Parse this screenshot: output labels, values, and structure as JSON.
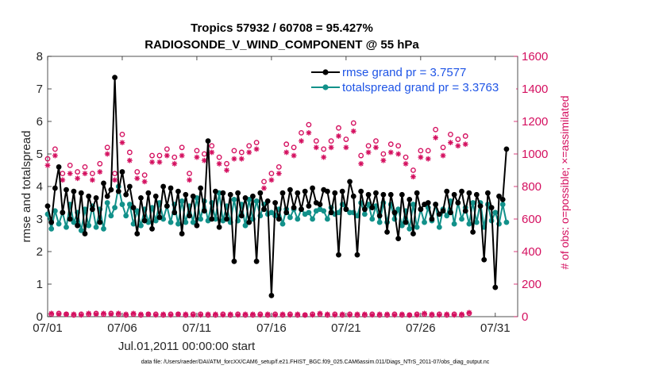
{
  "chart_data": {
    "type": "line",
    "title_line1": "Tropics 57932 / 60708 = 95.427%",
    "title_line2": "RADIOSONDE_V_WIND_COMPONENT @ 55 hPa",
    "xlabel": "Jul.01,2011 00:00:00 start",
    "ylabel_left": "rmse and totalspread",
    "ylabel_right": "# of obs: o=possible; ×=assimilated",
    "footnote": "data file: /Users/raeder/DAI/ATM_forcXX/CAM6_setup/f.e21.FHIST_BGC.f09_025.CAM6assim.011/Diags_NTrS_2011-07/obs_diag_output.nc",
    "ylim_left": [
      0,
      8
    ],
    "yticks_left": [
      "0",
      "1",
      "2",
      "3",
      "4",
      "5",
      "6",
      "7",
      "8"
    ],
    "ylim_right": [
      0,
      1600
    ],
    "yticks_right": [
      "0",
      "200",
      "400",
      "600",
      "800",
      "1000",
      "1200",
      "1400",
      "1600"
    ],
    "xlim": [
      0,
      31.5
    ],
    "xticks": [
      {
        "label": "07/01",
        "day": 0
      },
      {
        "label": "07/06",
        "day": 5
      },
      {
        "label": "07/11",
        "day": 10
      },
      {
        "label": "07/16",
        "day": 15
      },
      {
        "label": "07/21",
        "day": 20
      },
      {
        "label": "07/26",
        "day": 25
      },
      {
        "label": "07/31",
        "day": 30
      }
    ],
    "x": [
      0,
      0.25,
      0.5,
      0.75,
      1,
      1.25,
      1.5,
      1.75,
      2,
      2.25,
      2.5,
      2.75,
      3,
      3.25,
      3.5,
      3.75,
      4,
      4.25,
      4.5,
      4.75,
      5,
      5.25,
      5.5,
      5.75,
      6,
      6.25,
      6.5,
      6.75,
      7,
      7.25,
      7.5,
      7.75,
      8,
      8.25,
      8.5,
      8.75,
      9,
      9.25,
      9.5,
      9.75,
      10,
      10.25,
      10.5,
      10.75,
      11,
      11.25,
      11.5,
      11.75,
      12,
      12.25,
      12.5,
      12.75,
      13,
      13.25,
      13.5,
      13.75,
      14,
      14.25,
      14.5,
      14.75,
      15,
      15.25,
      15.5,
      15.75,
      16,
      16.25,
      16.5,
      16.75,
      17,
      17.25,
      17.5,
      17.75,
      18,
      18.25,
      18.5,
      18.75,
      19,
      19.25,
      19.5,
      19.75,
      20,
      20.25,
      20.5,
      20.75,
      21,
      21.25,
      21.5,
      21.75,
      22,
      22.25,
      22.5,
      22.75,
      23,
      23.25,
      23.5,
      23.75,
      24,
      24.25,
      24.5,
      24.75,
      25,
      25.25,
      25.5,
      25.75,
      26,
      26.25,
      26.5,
      26.75,
      27,
      27.25,
      27.5,
      27.75,
      28,
      28.25,
      28.5,
      28.75,
      29,
      29.25,
      29.5,
      29.75,
      30,
      30.25,
      30.5,
      30.75
    ],
    "series": [
      {
        "name": "rmse grand pr = 3.7577",
        "axis": "left",
        "color": "#000000",
        "values": [
          3.4,
          2.9,
          3.95,
          4.6,
          3.2,
          3.9,
          3.0,
          3.85,
          2.8,
          3.8,
          2.55,
          3.7,
          3.3,
          3.65,
          2.9,
          4.1,
          3.7,
          3.9,
          7.35,
          3.85,
          4.45,
          3.75,
          4.0,
          3.35,
          2.55,
          3.65,
          2.95,
          3.8,
          2.7,
          3.7,
          3.05,
          4.0,
          3.4,
          3.95,
          3.2,
          3.85,
          2.55,
          3.75,
          3.1,
          3.7,
          2.8,
          3.95,
          3.25,
          5.4,
          3.0,
          3.85,
          2.75,
          3.8,
          3.0,
          3.75,
          1.7,
          3.8,
          3.1,
          3.65,
          2.9,
          3.7,
          1.7,
          3.8,
          3.3,
          3.55,
          0.65,
          3.5,
          3.0,
          3.8,
          3.2,
          3.9,
          3.35,
          3.8,
          3.3,
          3.85,
          3.4,
          3.95,
          3.5,
          3.45,
          3.9,
          3.85,
          3.2,
          3.8,
          1.9,
          3.85,
          3.3,
          4.15,
          3.7,
          1.9,
          3.85,
          3.3,
          3.75,
          3.35,
          3.8,
          3.1,
          3.75,
          2.6,
          3.75,
          3.2,
          2.4,
          3.75,
          2.9,
          3.6,
          2.55,
          3.8,
          3.3,
          3.45,
          3.5,
          3.0,
          3.45,
          3.15,
          3.25,
          3.85,
          3.2,
          3.75,
          3.5,
          3.85,
          3.25,
          3.8,
          2.6,
          3.75,
          3.4,
          1.75,
          3.8,
          3.35,
          0.9,
          3.7,
          3.6,
          5.15
        ]
      },
      {
        "name": "totalspread grand pr = 3.3763",
        "axis": "left",
        "color": "#12918a",
        "values": [
          3.15,
          2.7,
          3.25,
          2.85,
          3.2,
          2.75,
          3.45,
          2.9,
          3.2,
          2.65,
          3.3,
          2.8,
          3.4,
          2.75,
          3.3,
          2.7,
          3.5,
          3.1,
          3.35,
          4.0,
          3.45,
          3.1,
          3.45,
          2.85,
          3.25,
          2.8,
          3.3,
          2.9,
          3.35,
          2.95,
          3.5,
          3.0,
          3.4,
          2.9,
          3.45,
          2.85,
          3.55,
          2.9,
          3.4,
          2.9,
          3.65,
          3.0,
          3.55,
          2.95,
          3.5,
          3.0,
          3.8,
          2.95,
          3.4,
          2.9,
          3.6,
          2.95,
          3.45,
          2.8,
          3.6,
          3.0,
          3.55,
          3.1,
          3.45,
          3.15,
          3.2,
          3.1,
          3.3,
          2.85,
          3.3,
          3.05,
          3.3,
          3.0,
          3.3,
          3.15,
          3.2,
          3.0,
          3.25,
          3.3,
          3.25,
          3.0,
          3.35,
          3.15,
          3.2,
          3.45,
          3.3,
          3.2,
          3.2,
          3.1,
          3.5,
          3.15,
          3.45,
          3.0,
          3.4,
          2.9,
          3.5,
          2.9,
          3.45,
          3.0,
          3.3,
          2.8,
          3.25,
          2.7,
          3.45,
          2.75,
          3.3,
          2.9,
          3.35,
          2.95,
          3.45,
          2.75,
          3.3,
          3.1,
          3.55,
          2.85,
          3.5,
          3.0,
          3.35,
          2.85,
          3.5,
          2.9,
          3.5,
          2.75,
          3.45,
          2.95,
          3.2,
          2.85,
          3.45,
          2.9
        ]
      }
    ],
    "obs_possible": {
      "name": "o=possible",
      "axis": "right",
      "color": "#d40f5f",
      "values": [
        970,
        15,
        1030,
        20,
        880,
        15,
        930,
        10,
        890,
        15,
        920,
        15,
        880,
        20,
        940,
        15,
        1040,
        20,
        880,
        15,
        1120,
        10,
        1010,
        15,
        890,
        10,
        870,
        15,
        990,
        15,
        990,
        10,
        1030,
        15,
        980,
        15,
        1040,
        10,
        880,
        15,
        1020,
        15,
        1000,
        10,
        1050,
        10,
        980,
        15,
        940,
        10,
        1020,
        15,
        1010,
        10,
        1050,
        10,
        1070,
        15,
        830,
        10,
        880,
        15,
        920,
        10,
        1060,
        15,
        1040,
        10,
        1130,
        10,
        1180,
        15,
        1080,
        15,
        1030,
        10,
        1080,
        15,
        1160,
        10,
        1090,
        15,
        1190,
        10,
        990,
        10,
        1050,
        15,
        1080,
        10,
        1000,
        10,
        1060,
        15,
        1050,
        10,
        980,
        10,
        900,
        15,
        1020,
        15,
        1020,
        10,
        1150,
        15,
        1040,
        10,
        1120,
        15,
        1090,
        10,
        1110,
        20
      ]
    },
    "obs_assimilated": {
      "name": "×=assimilated",
      "axis": "right",
      "color": "#d40f5f",
      "values": [
        930,
        20,
        990,
        15,
        840,
        15,
        880,
        15,
        850,
        10,
        880,
        20,
        840,
        15,
        890,
        20,
        1000,
        15,
        840,
        20,
        1070,
        15,
        960,
        20,
        850,
        15,
        830,
        15,
        950,
        10,
        950,
        15,
        990,
        10,
        940,
        15,
        990,
        15,
        840,
        10,
        980,
        10,
        960,
        15,
        1010,
        15,
        940,
        10,
        900,
        15,
        970,
        10,
        970,
        15,
        1010,
        15,
        1030,
        10,
        790,
        15,
        840,
        10,
        880,
        15,
        1010,
        10,
        990,
        15,
        1080,
        10,
        1130,
        10,
        1040,
        20,
        980,
        15,
        1040,
        10,
        1110,
        15,
        1040,
        10,
        1140,
        15,
        940,
        15,
        1010,
        10,
        1040,
        15,
        960,
        15,
        1010,
        10,
        1000,
        15,
        940,
        10,
        860,
        10,
        980,
        20,
        970,
        15,
        1100,
        10,
        990,
        15,
        1070,
        10,
        1050,
        15,
        1060,
        25
      ]
    },
    "legend": [
      {
        "label": "rmse grand pr = 3.7577",
        "color": "#000000"
      },
      {
        "label": "totalspread grand pr = 3.3763",
        "color": "#12918a"
      }
    ],
    "legend_position": "top-right",
    "grid": false
  }
}
